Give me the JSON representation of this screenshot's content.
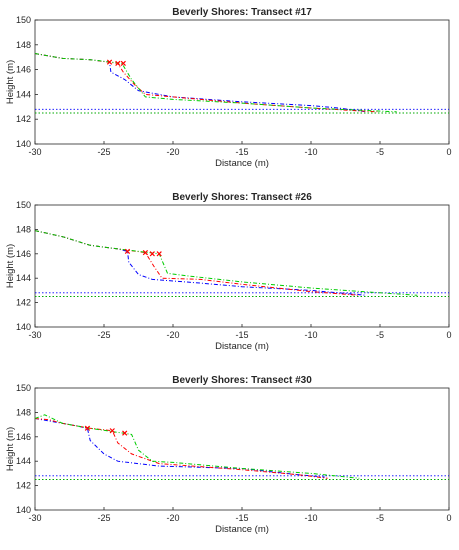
{
  "chart_data": [
    {
      "type": "line",
      "title": "Beverly Shores: Transect #17",
      "xlabel": "Distance (m)",
      "ylabel": "Height (m)",
      "xlim": [
        -30,
        0
      ],
      "ylim": [
        140,
        150
      ],
      "xticks": [
        -30,
        -25,
        -20,
        -15,
        -10,
        -5,
        0
      ],
      "yticks": [
        140,
        142,
        144,
        146,
        148,
        150
      ],
      "grid": false,
      "series": [
        {
          "color": "#0000ff",
          "style": "dashdot",
          "points": [
            [
              -30,
              147.3
            ],
            [
              -28,
              146.9
            ],
            [
              -26,
              146.8
            ],
            [
              -24.6,
              146.6
            ],
            [
              -24.5,
              145.8
            ],
            [
              -23.5,
              145.2
            ],
            [
              -22.5,
              144.3
            ],
            [
              -20,
              143.8
            ],
            [
              -15,
              143.4
            ],
            [
              -10,
              143.1
            ],
            [
              -8,
              142.9
            ],
            [
              -6,
              142.6
            ]
          ]
        },
        {
          "color": "#ff0000",
          "style": "dashdot",
          "points": [
            [
              -30,
              147.3
            ],
            [
              -28,
              146.9
            ],
            [
              -26,
              146.8
            ],
            [
              -24,
              146.5
            ],
            [
              -23.6,
              145.8
            ],
            [
              -22.8,
              144.8
            ],
            [
              -22,
              144.0
            ],
            [
              -20,
              143.8
            ],
            [
              -15,
              143.3
            ],
            [
              -10,
              142.9
            ],
            [
              -7,
              142.7
            ],
            [
              -5.2,
              142.6
            ]
          ]
        },
        {
          "color": "#00cc00",
          "style": "dashdot",
          "points": [
            [
              -30,
              147.3
            ],
            [
              -28,
              146.9
            ],
            [
              -26,
              146.8
            ],
            [
              -23.7,
              146.5
            ],
            [
              -23,
              145.2
            ],
            [
              -22,
              143.8
            ],
            [
              -20,
              143.6
            ],
            [
              -15,
              143.3
            ],
            [
              -10,
              142.9
            ],
            [
              -6,
              142.7
            ],
            [
              -3.8,
              142.6
            ]
          ]
        }
      ],
      "markers": {
        "color": "#ff0000",
        "points": [
          [
            -24.6,
            146.6
          ],
          [
            -24.0,
            146.5
          ],
          [
            -23.6,
            146.5
          ]
        ]
      },
      "reference_lines": [
        {
          "y": 142.8,
          "color": "#0000ff",
          "style": "dotted"
        },
        {
          "y": 142.5,
          "color": "#00aa00",
          "style": "dotted"
        }
      ]
    },
    {
      "type": "line",
      "title": "Beverly Shores: Transect #26",
      "xlabel": "Distance (m)",
      "ylabel": "Height (m)",
      "xlim": [
        -30,
        0
      ],
      "ylim": [
        140,
        150
      ],
      "xticks": [
        -30,
        -25,
        -20,
        -15,
        -10,
        -5,
        0
      ],
      "yticks": [
        140,
        142,
        144,
        146,
        148,
        150
      ],
      "grid": false,
      "series": [
        {
          "color": "#0000ff",
          "style": "dashdot",
          "points": [
            [
              -30,
              147.9
            ],
            [
              -28,
              147.4
            ],
            [
              -26,
              146.7
            ],
            [
              -24,
              146.4
            ],
            [
              -23.3,
              146.2
            ],
            [
              -23.2,
              145.3
            ],
            [
              -22.5,
              144.3
            ],
            [
              -21.5,
              143.9
            ],
            [
              -18,
              143.6
            ],
            [
              -15,
              143.3
            ],
            [
              -10,
              143.0
            ],
            [
              -6,
              142.6
            ]
          ]
        },
        {
          "color": "#ff0000",
          "style": "dashdot",
          "points": [
            [
              -30,
              147.9
            ],
            [
              -28,
              147.4
            ],
            [
              -26,
              146.7
            ],
            [
              -24,
              146.4
            ],
            [
              -22,
              146.1
            ],
            [
              -21.4,
              145.0
            ],
            [
              -20.8,
              144.0
            ],
            [
              -18,
              143.9
            ],
            [
              -15,
              143.5
            ],
            [
              -10,
              142.9
            ],
            [
              -6.5,
              142.6
            ]
          ]
        },
        {
          "color": "#00cc00",
          "style": "dashdot",
          "points": [
            [
              -30,
              147.9
            ],
            [
              -28,
              147.4
            ],
            [
              -26,
              146.7
            ],
            [
              -24,
              146.4
            ],
            [
              -21,
              146.0
            ],
            [
              -20.4,
              144.4
            ],
            [
              -19,
              144.2
            ],
            [
              -15,
              143.7
            ],
            [
              -10,
              143.2
            ],
            [
              -5,
              142.8
            ],
            [
              -2.3,
              142.6
            ]
          ]
        }
      ],
      "markers": {
        "color": "#ff0000",
        "points": [
          [
            -23.3,
            146.2
          ],
          [
            -22.0,
            146.1
          ],
          [
            -21.5,
            146.0
          ],
          [
            -21.0,
            146.0
          ]
        ]
      },
      "reference_lines": [
        {
          "y": 142.8,
          "color": "#0000ff",
          "style": "dotted"
        },
        {
          "y": 142.5,
          "color": "#00aa00",
          "style": "dotted"
        }
      ]
    },
    {
      "type": "line",
      "title": "Beverly Shores: Transect #30",
      "xlabel": "Distance (m)",
      "ylabel": "Height (m)",
      "xlim": [
        -30,
        0
      ],
      "ylim": [
        140,
        150
      ],
      "xticks": [
        -30,
        -25,
        -20,
        -15,
        -10,
        -5,
        0
      ],
      "yticks": [
        140,
        142,
        144,
        146,
        148,
        150
      ],
      "grid": false,
      "series": [
        {
          "color": "#0000ff",
          "style": "dashdot",
          "points": [
            [
              -30,
              147.5
            ],
            [
              -29,
              147.3
            ],
            [
              -28,
              147.1
            ],
            [
              -27,
              146.9
            ],
            [
              -26.2,
              146.7
            ],
            [
              -26,
              145.7
            ],
            [
              -25,
              144.6
            ],
            [
              -24,
              144.0
            ],
            [
              -21,
              143.6
            ],
            [
              -15,
              143.4
            ],
            [
              -11,
              142.9
            ],
            [
              -9,
              142.7
            ]
          ]
        },
        {
          "color": "#ff0000",
          "style": "dashdot",
          "points": [
            [
              -30,
              147.5
            ],
            [
              -29,
              147.4
            ],
            [
              -28,
              147.1
            ],
            [
              -26,
              146.7
            ],
            [
              -24.4,
              146.5
            ],
            [
              -24,
              145.5
            ],
            [
              -23,
              144.6
            ],
            [
              -21,
              143.8
            ],
            [
              -15,
              143.3
            ],
            [
              -11,
              142.9
            ],
            [
              -8.8,
              142.6
            ]
          ]
        },
        {
          "color": "#00cc00",
          "style": "dashdot",
          "points": [
            [
              -30,
              147.5
            ],
            [
              -29.3,
              147.8
            ],
            [
              -28,
              147.1
            ],
            [
              -26,
              146.7
            ],
            [
              -23,
              146.2
            ],
            [
              -22.5,
              144.9
            ],
            [
              -21.5,
              144.0
            ],
            [
              -20,
              143.9
            ],
            [
              -15,
              143.4
            ],
            [
              -10,
              143.0
            ],
            [
              -6.5,
              142.6
            ]
          ]
        }
      ],
      "markers": {
        "color": "#ff0000",
        "points": [
          [
            -26.2,
            146.7
          ],
          [
            -24.4,
            146.5
          ],
          [
            -23.5,
            146.3
          ]
        ]
      },
      "reference_lines": [
        {
          "y": 142.8,
          "color": "#0000ff",
          "style": "dotted"
        },
        {
          "y": 142.5,
          "color": "#00aa00",
          "style": "dotted"
        }
      ]
    }
  ]
}
